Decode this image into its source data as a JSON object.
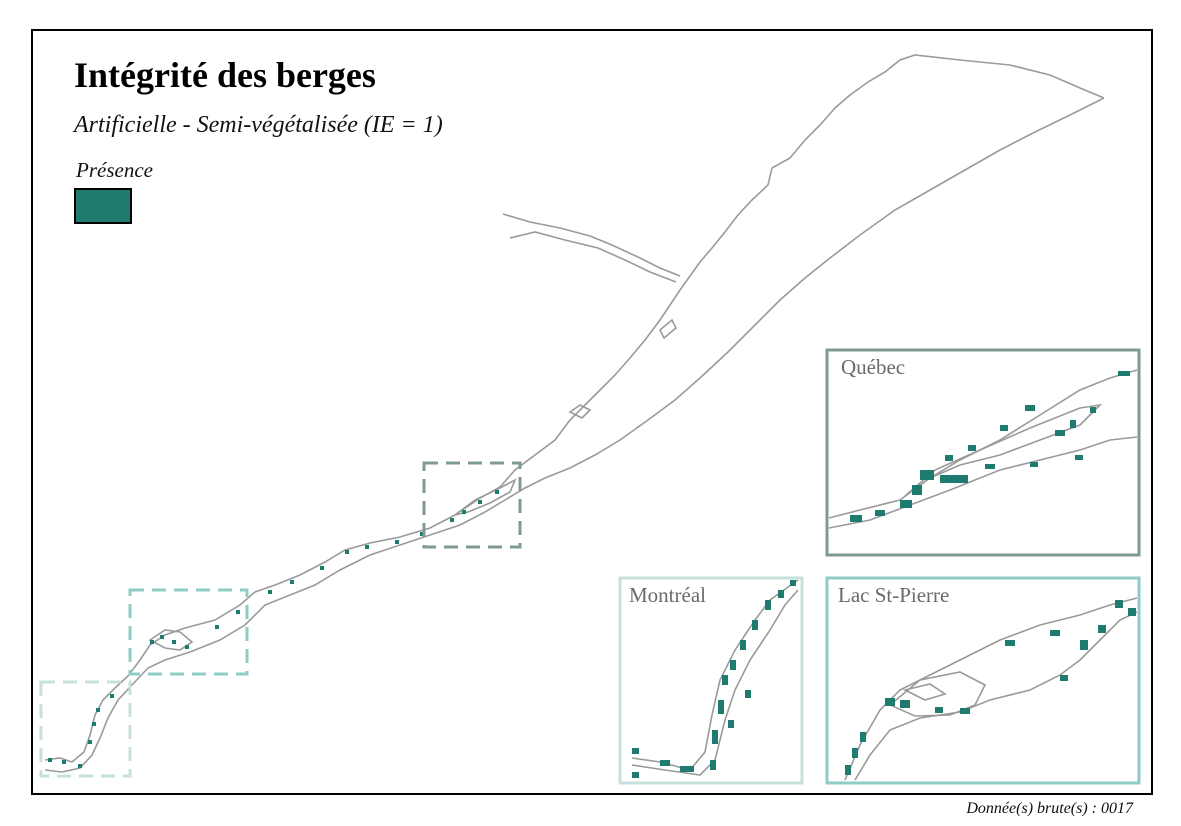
{
  "title": "Intégrité des berges",
  "subtitle": "Artificielle - Semi-végétalisée (IE = 1)",
  "legend": {
    "label": "Présence",
    "color": "#1e7b6f"
  },
  "insets": [
    {
      "name": "Québec",
      "border_color": "#7f9a96"
    },
    {
      "name": "Montréal",
      "border_color": "#c6e0de"
    },
    {
      "name": "Lac St-Pierre",
      "border_color": "#8fcdc4"
    }
  ],
  "source": "Donnée(s) brute(s) : 0017",
  "colors": {
    "shoreline": "#9a9a9a",
    "presence": "#1e7b6f",
    "frame": "#000000"
  }
}
